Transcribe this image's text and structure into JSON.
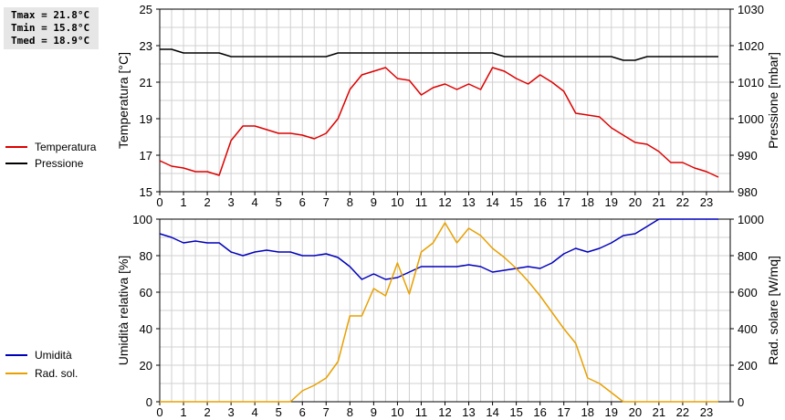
{
  "stats": {
    "tmax": "Tmax = 21.8°C",
    "tmin": "Tmin = 15.8°C",
    "tmed": "Tmed = 18.9°C"
  },
  "colors": {
    "temperature": "#dd0000",
    "pressure": "#000000",
    "humidity": "#0000bb",
    "radiation": "#e8a000",
    "grid": "#d0d0d0"
  },
  "chart_data": [
    {
      "type": "line",
      "xlim": [
        0,
        24
      ],
      "x_ticks": [
        "0",
        "1",
        "2",
        "3",
        "4",
        "5",
        "6",
        "7",
        "8",
        "9",
        "10",
        "11",
        "12",
        "13",
        "14",
        "15",
        "16",
        "17",
        "18",
        "19",
        "20",
        "21",
        "22",
        "23"
      ],
      "left_axis": {
        "label": "Temperatura [°C]",
        "ylim": [
          15,
          25
        ],
        "ticks": [
          "15",
          "17",
          "19",
          "21",
          "23",
          "25"
        ]
      },
      "right_axis": {
        "label": "Pressione [mbar]",
        "ylim": [
          980,
          1030
        ],
        "ticks": [
          "980",
          "990",
          "1000",
          "1010",
          "1020",
          "1030"
        ]
      },
      "grid": true,
      "legend_position": "left",
      "series": [
        {
          "name": "Temperatura",
          "axis": "left",
          "color": "#dd0000",
          "x": [
            0,
            0.5,
            1,
            1.5,
            2,
            2.5,
            3,
            3.5,
            4,
            4.5,
            5,
            5.5,
            6,
            6.5,
            7,
            7.5,
            8,
            8.5,
            9,
            9.5,
            10,
            10.5,
            11,
            11.5,
            12,
            12.5,
            13,
            13.5,
            14,
            14.5,
            15,
            15.5,
            16,
            16.5,
            17,
            17.5,
            18,
            18.5,
            19,
            19.5,
            20,
            20.5,
            21,
            21.5,
            22,
            22.5,
            23,
            23.5
          ],
          "y": [
            16.7,
            16.4,
            16.3,
            16.1,
            16.1,
            15.9,
            17.8,
            18.6,
            18.6,
            18.4,
            18.2,
            18.2,
            18.1,
            17.9,
            18.2,
            19.0,
            20.6,
            21.4,
            21.6,
            21.8,
            21.2,
            21.1,
            20.3,
            20.7,
            20.9,
            20.6,
            20.9,
            20.6,
            21.8,
            21.6,
            21.2,
            20.9,
            21.4,
            21.0,
            20.5,
            19.3,
            19.2,
            19.1,
            18.5,
            18.1,
            17.7,
            17.6,
            17.2,
            16.6,
            16.6,
            16.3,
            16.1,
            15.8
          ]
        },
        {
          "name": "Pressione",
          "axis": "right",
          "color": "#000000",
          "x": [
            0,
            0.5,
            1,
            1.5,
            2,
            2.5,
            3,
            3.5,
            4,
            4.5,
            5,
            5.5,
            6,
            6.5,
            7,
            7.5,
            8,
            8.5,
            9,
            9.5,
            10,
            10.5,
            11,
            11.5,
            12,
            12.5,
            13,
            13.5,
            14,
            14.5,
            15,
            15.5,
            16,
            16.5,
            17,
            17.5,
            18,
            18.5,
            19,
            19.5,
            20,
            20.5,
            21,
            21.5,
            22,
            22.5,
            23,
            23.5
          ],
          "y": [
            1019,
            1019,
            1018,
            1018,
            1018,
            1018,
            1017,
            1017,
            1017,
            1017,
            1017,
            1017,
            1017,
            1017,
            1017,
            1018,
            1018,
            1018,
            1018,
            1018,
            1018,
            1018,
            1018,
            1018,
            1018,
            1018,
            1018,
            1018,
            1018,
            1017,
            1017,
            1017,
            1017,
            1017,
            1017,
            1017,
            1017,
            1017,
            1017,
            1016,
            1016,
            1017,
            1017,
            1017,
            1017,
            1017,
            1017,
            1017
          ]
        }
      ]
    },
    {
      "type": "line",
      "xlim": [
        0,
        24
      ],
      "x_ticks": [
        "0",
        "1",
        "2",
        "3",
        "4",
        "5",
        "6",
        "7",
        "8",
        "9",
        "10",
        "11",
        "12",
        "13",
        "14",
        "15",
        "16",
        "17",
        "18",
        "19",
        "20",
        "21",
        "22",
        "23"
      ],
      "left_axis": {
        "label": "Umidità relativa [%]",
        "ylim": [
          0,
          100
        ],
        "ticks": [
          "0",
          "20",
          "40",
          "60",
          "80",
          "100"
        ]
      },
      "right_axis": {
        "label": "Rad. solare [W/mq]",
        "ylim": [
          0,
          1000
        ],
        "ticks": [
          "0",
          "200",
          "400",
          "600",
          "800",
          "1000"
        ]
      },
      "grid": true,
      "legend_position": "left",
      "series": [
        {
          "name": "Umidità",
          "axis": "left",
          "color": "#0000bb",
          "x": [
            0,
            0.5,
            1,
            1.5,
            2,
            2.5,
            3,
            3.5,
            4,
            4.5,
            5,
            5.5,
            6,
            6.5,
            7,
            7.5,
            8,
            8.5,
            9,
            9.5,
            10,
            10.5,
            11,
            11.5,
            12,
            12.5,
            13,
            13.5,
            14,
            14.5,
            15,
            15.5,
            16,
            16.5,
            17,
            17.5,
            18,
            18.5,
            19,
            19.5,
            20,
            20.5,
            21,
            21.5,
            22,
            22.5,
            23,
            23.5
          ],
          "y": [
            92,
            90,
            87,
            88,
            87,
            87,
            82,
            80,
            82,
            83,
            82,
            82,
            80,
            80,
            81,
            79,
            74,
            67,
            70,
            67,
            68,
            71,
            74,
            74,
            74,
            74,
            75,
            74,
            71,
            72,
            73,
            74,
            73,
            76,
            81,
            84,
            82,
            84,
            87,
            91,
            92,
            96,
            100,
            100,
            100,
            100,
            100,
            100
          ]
        },
        {
          "name": "Rad. sol.",
          "axis": "right",
          "color": "#e8a000",
          "x": [
            0,
            0.5,
            1,
            1.5,
            2,
            2.5,
            3,
            3.5,
            4,
            4.5,
            5,
            5.5,
            6,
            6.5,
            7,
            7.5,
            8,
            8.5,
            9,
            9.5,
            10,
            10.5,
            11,
            11.5,
            12,
            12.5,
            13,
            13.5,
            14,
            14.5,
            15,
            15.5,
            16,
            16.5,
            17,
            17.5,
            18,
            18.5,
            19,
            19.5,
            20,
            20.5,
            21,
            21.5,
            22,
            22.5,
            23,
            23.5
          ],
          "y": [
            0,
            0,
            0,
            0,
            0,
            0,
            0,
            0,
            0,
            0,
            0,
            0,
            60,
            90,
            130,
            220,
            470,
            470,
            620,
            580,
            760,
            590,
            820,
            870,
            980,
            870,
            950,
            910,
            840,
            790,
            730,
            660,
            580,
            490,
            400,
            320,
            130,
            100,
            50,
            0,
            0,
            0,
            0,
            0,
            0,
            0,
            0,
            0
          ]
        }
      ]
    }
  ]
}
